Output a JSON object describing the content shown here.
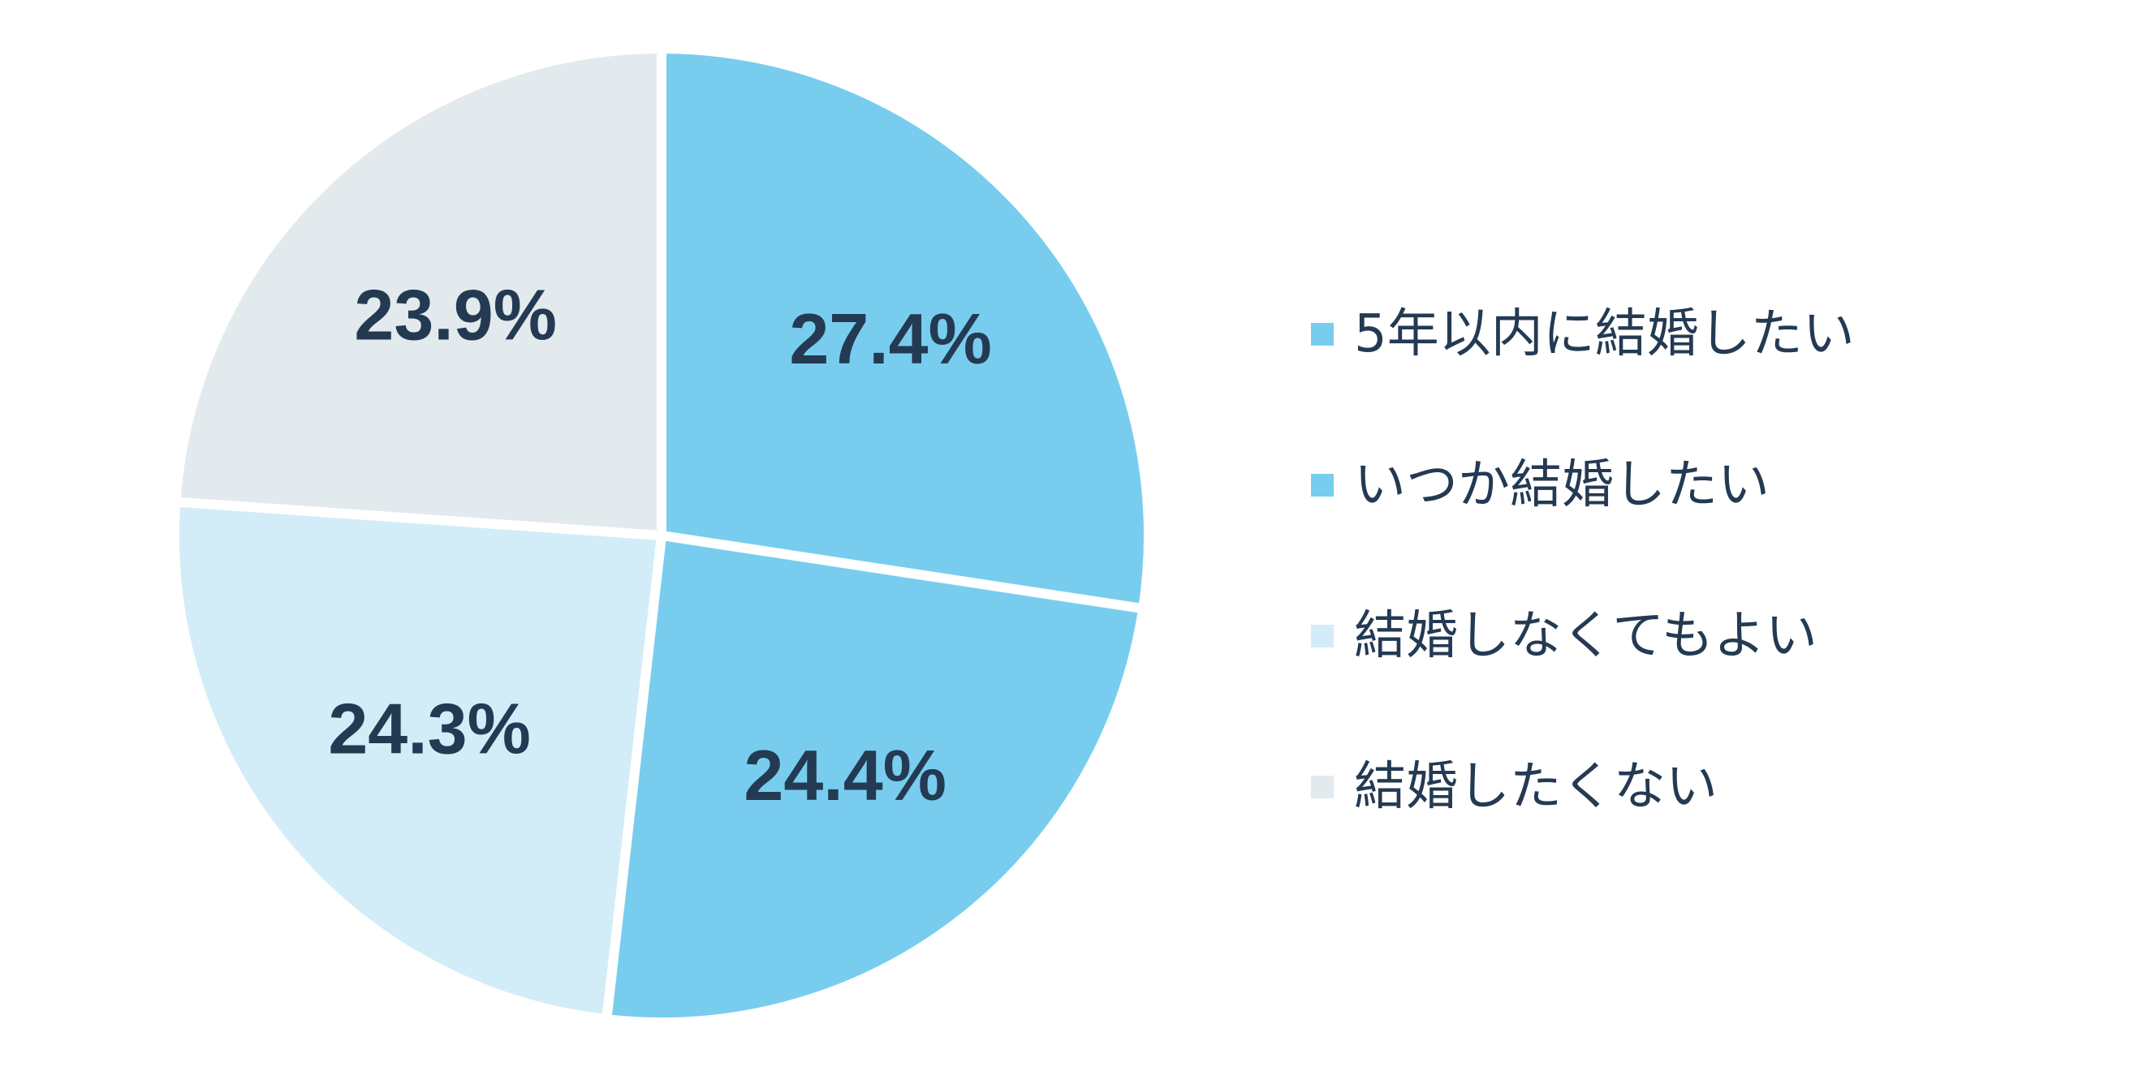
{
  "chart_data": {
    "type": "pie",
    "start_angle": "12 o'clock",
    "direction": "clockwise",
    "legend_position": "right",
    "slices": [
      {
        "label": "5年以内に結婚したい",
        "value": 27.4,
        "display": "27.4%",
        "color": "#78cdee"
      },
      {
        "label": "いつか結婚したい",
        "value": 24.4,
        "display": "24.4%",
        "color": "#78cdee"
      },
      {
        "label": "結婚しなくてもよい",
        "value": 24.3,
        "display": "24.3%",
        "color": "#d3edf8"
      },
      {
        "label": "結婚したくない",
        "value": 23.9,
        "display": "23.9%",
        "color": "#e2eaee"
      }
    ],
    "text_color": "#243a53",
    "background": "#ffffff"
  }
}
